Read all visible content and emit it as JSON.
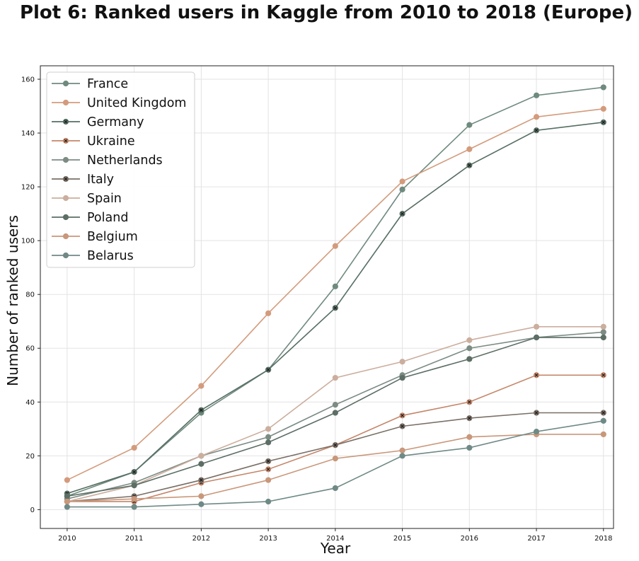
{
  "chart_data": {
    "type": "line",
    "title": "Plot 6: Ranked users in Kaggle from 2010 to 2018 (Europe)",
    "xlabel": "Year",
    "ylabel": "Number of ranked users",
    "x": [
      2010,
      2011,
      2012,
      2013,
      2014,
      2015,
      2016,
      2017,
      2018
    ],
    "x_tick_labels": [
      "2010",
      "2011",
      "2012",
      "2013",
      "2014",
      "2015",
      "2016",
      "2017",
      "2018"
    ],
    "xlim": [
      2009.6,
      2018.15
    ],
    "ylim": [
      -7,
      165
    ],
    "y_ticks": [
      0,
      20,
      40,
      60,
      80,
      100,
      120,
      140,
      160
    ],
    "y_tick_labels": [
      "0",
      "20",
      "40",
      "60",
      "80",
      "100",
      "120",
      "140",
      "160"
    ],
    "grid": true,
    "legend_position": "upper-left",
    "series": [
      {
        "name": "France",
        "color": "#6f8a7e",
        "marker": "circle",
        "values": [
          5,
          14,
          36,
          52,
          83,
          119,
          143,
          154,
          157
        ]
      },
      {
        "name": "United Kingdom",
        "color": "#d39b7c",
        "marker": "circle",
        "values": [
          11,
          23,
          46,
          73,
          98,
          122,
          134,
          146,
          149
        ]
      },
      {
        "name": "Germany",
        "color": "#566e63",
        "marker": "circle-x",
        "values": [
          6,
          14,
          37,
          52,
          75,
          110,
          128,
          141,
          144
        ]
      },
      {
        "name": "Ukraine",
        "color": "#c4866a",
        "marker": "circle-x",
        "values": [
          3,
          3,
          10,
          15,
          24,
          35,
          40,
          50,
          50
        ]
      },
      {
        "name": "Netherlands",
        "color": "#7c8c84",
        "marker": "circle",
        "values": [
          4,
          10,
          20,
          27,
          39,
          50,
          60,
          64,
          66
        ]
      },
      {
        "name": "Italy",
        "color": "#7a6f66",
        "marker": "circle-x",
        "values": [
          3,
          5,
          11,
          18,
          24,
          31,
          34,
          36,
          36
        ]
      },
      {
        "name": "Spain",
        "color": "#ccae9e",
        "marker": "circle",
        "values": [
          3,
          9,
          20,
          30,
          49,
          55,
          63,
          68,
          68
        ]
      },
      {
        "name": "Poland",
        "color": "#5c6e65",
        "marker": "circle",
        "values": [
          5,
          9,
          17,
          25,
          36,
          49,
          56,
          64,
          64
        ]
      },
      {
        "name": "Belgium",
        "color": "#c9977a",
        "marker": "circle",
        "values": [
          3,
          4,
          5,
          11,
          19,
          22,
          27,
          28,
          28
        ]
      },
      {
        "name": "Belarus",
        "color": "#6f8a86",
        "marker": "circle",
        "values": [
          1,
          1,
          2,
          3,
          8,
          20,
          23,
          29,
          33
        ]
      }
    ]
  }
}
